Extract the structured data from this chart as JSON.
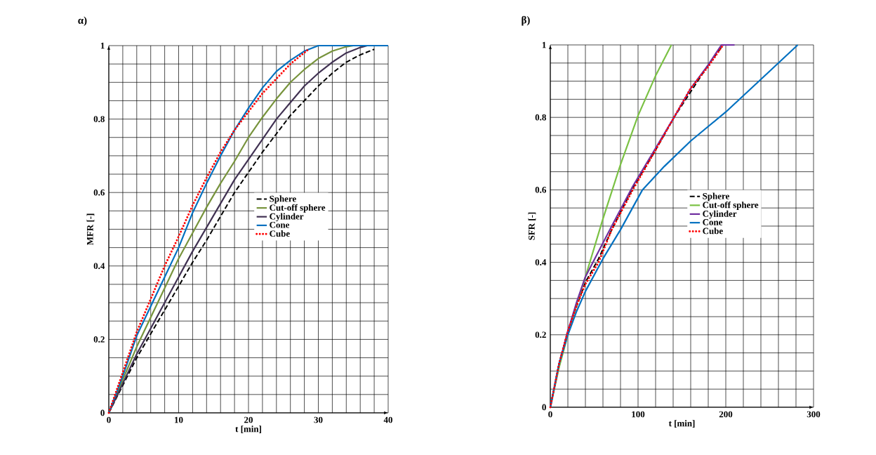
{
  "chart_data": [
    {
      "type": "line",
      "title": "α)",
      "xlabel": "t [min]",
      "ylabel": "MFR [-]",
      "xlim": [
        0,
        40
      ],
      "ylim": [
        0,
        1
      ],
      "xticks": [
        0,
        10,
        20,
        30,
        40
      ],
      "yticks": [
        0,
        0.2,
        0.4,
        0.6,
        0.8,
        1
      ],
      "grid": true,
      "legend": "right",
      "series": [
        {
          "name": "Sphere",
          "color": "#000000",
          "line_style": "dashed",
          "x": [
            0,
            2,
            4,
            6,
            8,
            10,
            12,
            14,
            16,
            18,
            20,
            22,
            24,
            26,
            28,
            30,
            32,
            34,
            36,
            38
          ],
          "values": [
            0,
            0.075,
            0.15,
            0.215,
            0.28,
            0.345,
            0.41,
            0.47,
            0.535,
            0.6,
            0.655,
            0.71,
            0.76,
            0.81,
            0.85,
            0.89,
            0.925,
            0.955,
            0.975,
            0.99
          ]
        },
        {
          "name": "Cut-off sphere",
          "color": "#77933c",
          "line_style": "solid",
          "x": [
            0,
            2,
            4,
            6,
            8,
            10,
            12,
            14,
            16,
            18,
            20,
            22,
            24,
            26,
            28,
            30,
            32,
            34,
            35
          ],
          "values": [
            0,
            0.09,
            0.18,
            0.26,
            0.34,
            0.42,
            0.49,
            0.56,
            0.625,
            0.685,
            0.75,
            0.805,
            0.855,
            0.9,
            0.935,
            0.965,
            0.985,
            0.997,
            1
          ]
        },
        {
          "name": "Cylinder",
          "color": "#403152",
          "line_style": "solid",
          "x": [
            0,
            2,
            4,
            6,
            8,
            10,
            12,
            14,
            16,
            18,
            20,
            22,
            24,
            26,
            28,
            30,
            32,
            34,
            36,
            37
          ],
          "values": [
            0,
            0.08,
            0.16,
            0.23,
            0.3,
            0.37,
            0.44,
            0.505,
            0.57,
            0.635,
            0.69,
            0.745,
            0.8,
            0.845,
            0.89,
            0.925,
            0.955,
            0.98,
            0.995,
            1
          ]
        },
        {
          "name": "Cone",
          "color": "#0070c0",
          "line_style": "solid",
          "x": [
            0,
            2,
            4,
            6,
            8,
            10,
            12,
            14,
            16,
            18,
            20,
            22,
            24,
            26,
            28,
            30,
            40
          ],
          "values": [
            0,
            0.1,
            0.21,
            0.29,
            0.37,
            0.45,
            0.545,
            0.625,
            0.7,
            0.77,
            0.83,
            0.885,
            0.93,
            0.96,
            0.985,
            1,
            1
          ]
        },
        {
          "name": "Cube",
          "color": "#ff0000",
          "line_style": "dotted",
          "x": [
            0,
            2,
            4,
            6,
            8,
            10,
            12,
            14,
            16,
            18,
            20,
            22,
            24,
            26,
            28.6
          ],
          "values": [
            0,
            0.11,
            0.22,
            0.31,
            0.4,
            0.48,
            0.565,
            0.64,
            0.71,
            0.77,
            0.82,
            0.87,
            0.91,
            0.95,
            0.99
          ]
        }
      ]
    },
    {
      "type": "line",
      "title": "β)",
      "xlabel": "t [min]",
      "ylabel": "SFR [-]",
      "xlim": [
        0,
        300
      ],
      "ylim": [
        0,
        1
      ],
      "xticks": [
        0,
        100,
        200,
        300
      ],
      "yticks": [
        0,
        0.2,
        0.4,
        0.6,
        0.8,
        1
      ],
      "grid": true,
      "legend": "right",
      "series": [
        {
          "name": "Sphere",
          "color": "#000000",
          "line_style": "dashed",
          "x": [
            0,
            10,
            20,
            30,
            40,
            55,
            70,
            94,
            120,
            141,
            160,
            180,
            197
          ],
          "values": [
            0,
            0.12,
            0.21,
            0.28,
            0.345,
            0.41,
            0.49,
            0.605,
            0.71,
            0.8,
            null,
            0.945,
            1
          ]
        },
        {
          "name": "Cut-off sphere",
          "color": "#7ac143",
          "line_style": "solid",
          "x": [
            0,
            10,
            20,
            30,
            40,
            60,
            80,
            100,
            120,
            138
          ],
          "values": [
            0,
            0.11,
            0.2,
            0.285,
            0.36,
            0.52,
            0.67,
            0.805,
            0.915,
            1
          ]
        },
        {
          "name": "Cylinder",
          "color": "#7030a0",
          "line_style": "solid",
          "x": [
            0,
            10,
            20,
            30,
            40,
            55,
            70,
            94,
            120,
            141,
            160,
            180,
            195,
            210
          ],
          "values": [
            0,
            0.12,
            0.21,
            0.29,
            0.36,
            0.43,
            0.5,
            0.61,
            0.715,
            0.8,
            0.88,
            0.945,
            1,
            1
          ]
        },
        {
          "name": "Cone",
          "color": "#0070c0",
          "line_style": "solid",
          "x": [
            0,
            10,
            20,
            30,
            40,
            60,
            80,
            105,
            130,
            160,
            200,
            240,
            282
          ],
          "values": [
            0,
            0.12,
            0.2,
            0.265,
            0.32,
            0.41,
            0.49,
            0.6,
            0.665,
            0.735,
            0.815,
            0.905,
            1
          ]
        },
        {
          "name": "Cube",
          "color": "#ff0000",
          "line_style": "dotted",
          "x": [
            0,
            10,
            20,
            30,
            40,
            55,
            70,
            94,
            120,
            141,
            160,
            180,
            197
          ],
          "values": [
            0,
            0.12,
            0.21,
            0.28,
            0.34,
            0.4,
            0.49,
            0.6,
            0.71,
            0.8,
            0.88,
            0.94,
            1
          ]
        }
      ]
    }
  ]
}
